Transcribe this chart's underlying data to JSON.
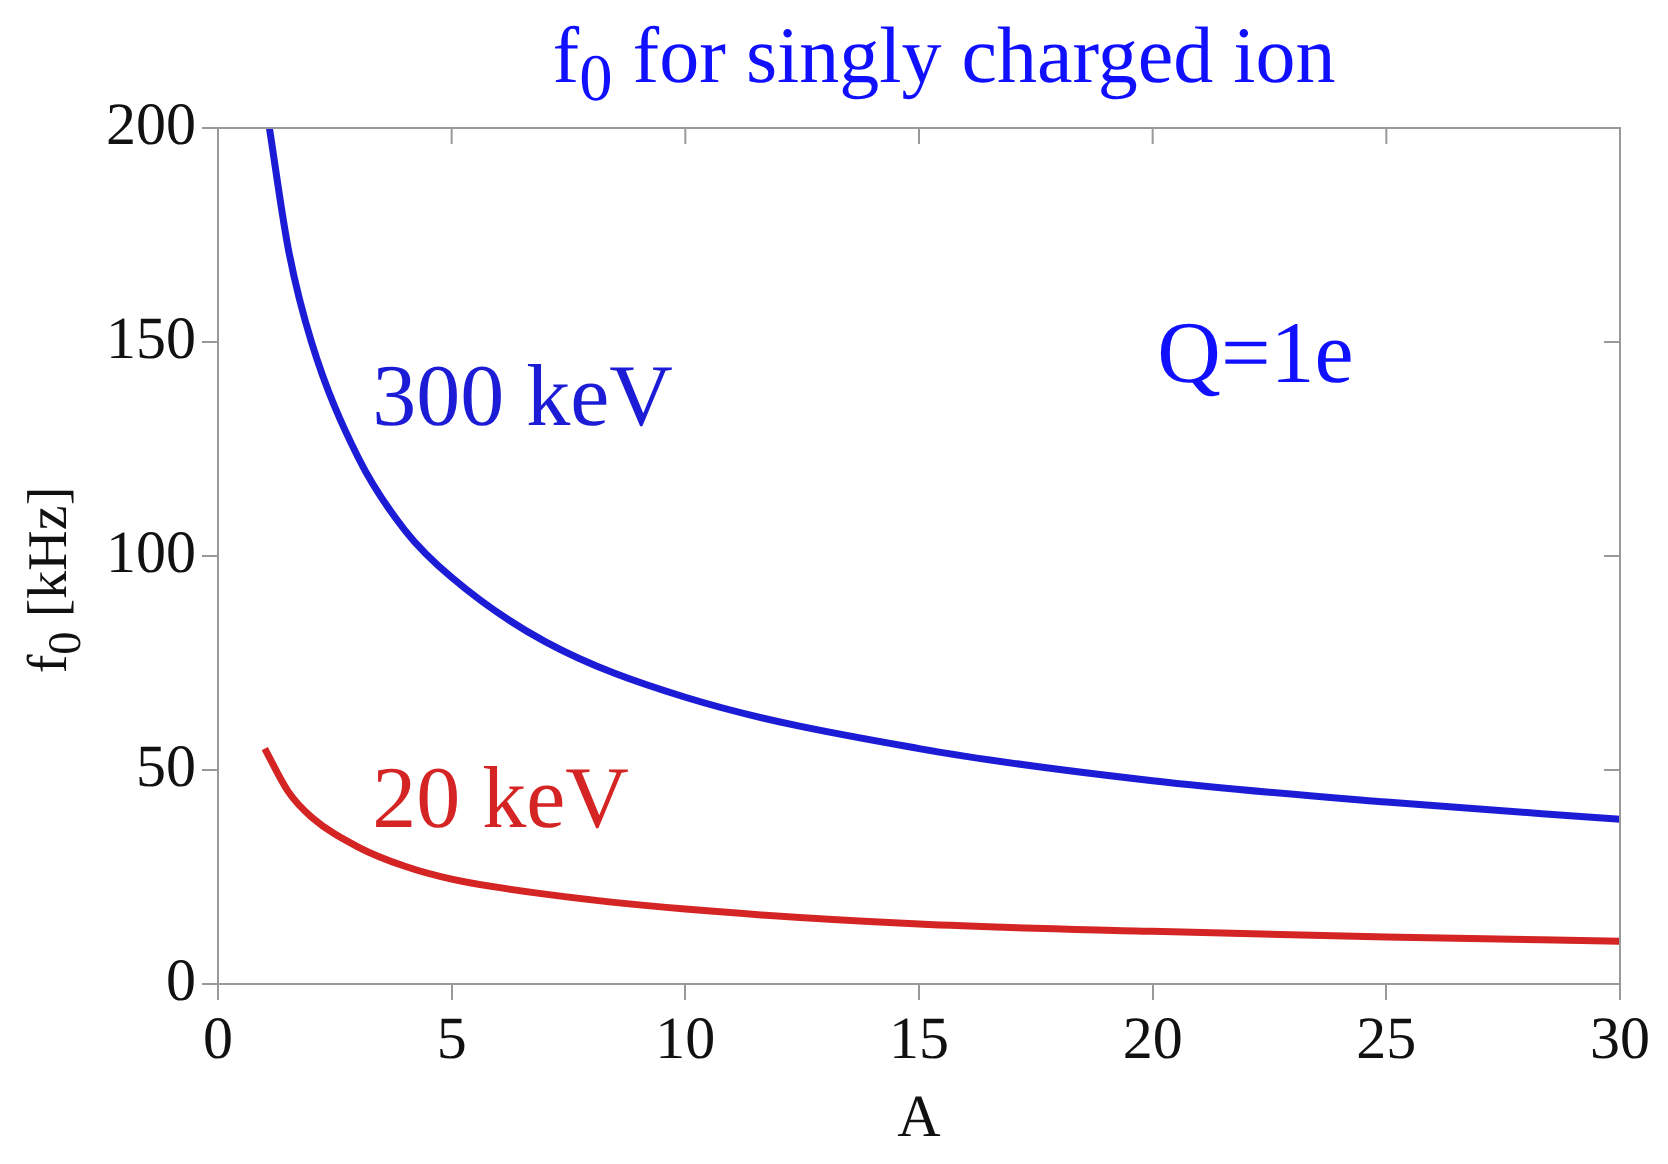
{
  "chart_data": {
    "type": "line",
    "title": "f$_{0}$ for singly charged ion",
    "xlabel": "A",
    "ylabel": "f$_{0}$ [kHz]",
    "annotations": [
      "Q=1e"
    ],
    "xlim": [
      0,
      30
    ],
    "xticks": [
      0,
      5,
      10,
      15,
      20,
      25,
      30
    ],
    "ylim": [
      0,
      200
    ],
    "yticks": [
      0,
      50,
      100,
      150,
      200
    ],
    "grid": false,
    "legend": false,
    "marker": "none",
    "line_style": "solid",
    "series": [
      {
        "name": "300 keV",
        "color": "#1c1cd6",
        "x": [
          1.1,
          1.5,
          2,
          3,
          4,
          5,
          7,
          10,
          15,
          20,
          25,
          30
        ],
        "values": [
          200,
          172,
          150,
          123,
          106,
          95,
          80,
          67,
          55,
          47.5,
          42.5,
          38.5
        ]
      },
      {
        "name": "20 keV",
        "color": "#d42424",
        "x": [
          1,
          1.5,
          2,
          3,
          4,
          5,
          7,
          10,
          15,
          20,
          25,
          30
        ],
        "values": [
          55,
          45,
          39,
          32,
          27.5,
          24.5,
          21,
          17.5,
          14,
          12.3,
          11,
          10
        ]
      }
    ]
  }
}
